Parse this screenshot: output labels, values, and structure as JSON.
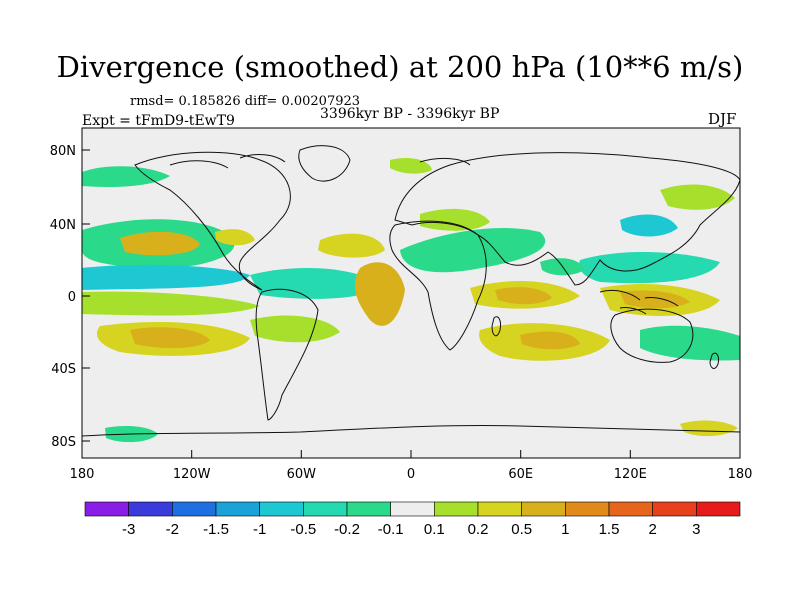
{
  "title": "Divergence (smoothed) at 200 hPa (10**6 m/s)",
  "stats": "rmsd= 0.185826 diff= 0.00207923",
  "experiment": "Expt = tFmD9-tEwT9",
  "period": "3396kyr BP - 3396kyr BP",
  "season": "DJF",
  "lat_ticks": [
    "80N",
    "40N",
    "0",
    "40S",
    "80S"
  ],
  "lon_ticks": [
    "180",
    "120W",
    "60W",
    "0",
    "60E",
    "120E",
    "180"
  ],
  "colorbar": {
    "labels": [
      "-3",
      "-2",
      "-1.5",
      "-1",
      "-0.5",
      "-0.2",
      "-0.1",
      "0.1",
      "0.2",
      "0.5",
      "1",
      "1.5",
      "2",
      "3"
    ],
    "colors": [
      "#8a1de6",
      "#3b3bdc",
      "#1f6fe0",
      "#1ba3d8",
      "#1ec8d2",
      "#25d9b0",
      "#2ad98a",
      "#eeeeee",
      "#a6e02c",
      "#d6d420",
      "#d8b01c",
      "#e08a1c",
      "#e6641c",
      "#e6401c",
      "#e61c1c"
    ]
  },
  "map_colors": {
    "background": "#eeeeee",
    "neg_weak": "#2ad98a",
    "neg_mid": "#25d9b0",
    "neg_strong": "#1ec8d2",
    "pos_weak": "#a6e02c",
    "pos_mid": "#d6d420",
    "pos_strong": "#d8b01c",
    "coast": "#111111"
  }
}
